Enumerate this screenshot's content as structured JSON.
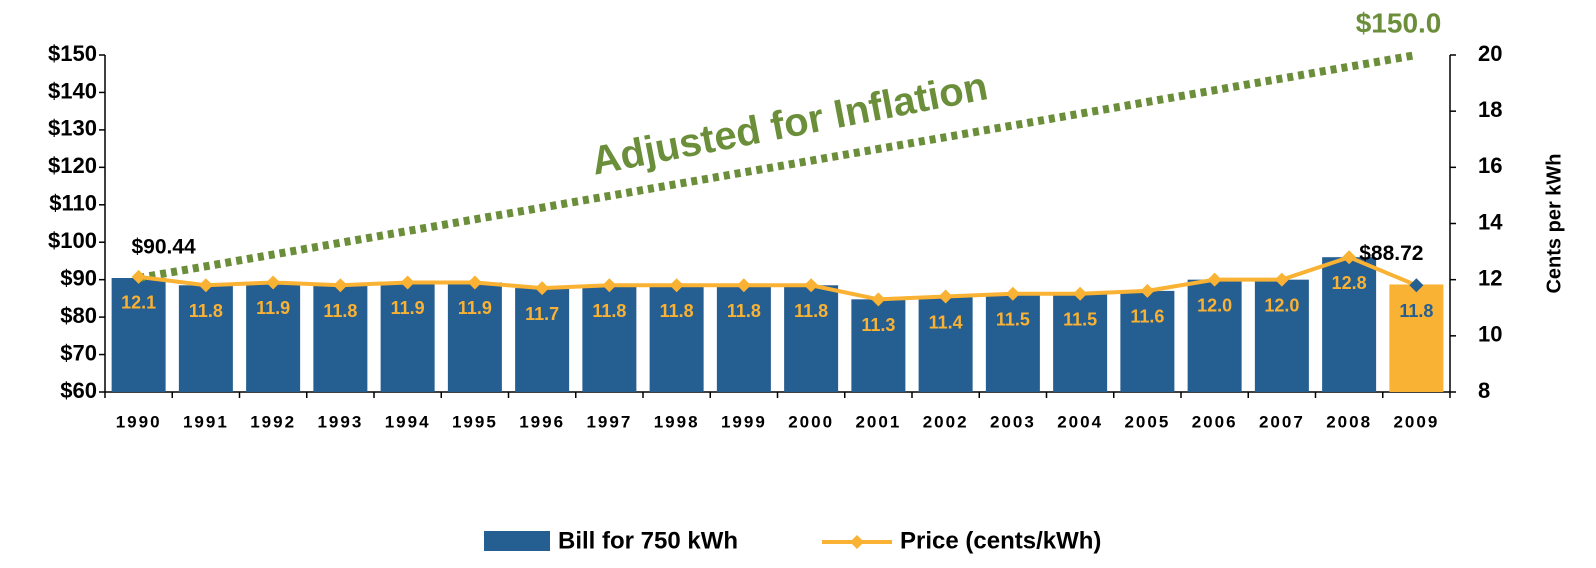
{
  "chart_data": {
    "type": "bar_line",
    "categories": [
      "1990",
      "1991",
      "1992",
      "1993",
      "1994",
      "1995",
      "1996",
      "1997",
      "1998",
      "1999",
      "2000",
      "2001",
      "2002",
      "2003",
      "2004",
      "2005",
      "2006",
      "2007",
      "2008",
      "2009"
    ],
    "series": [
      {
        "name": "Bill for 750 kWh",
        "type": "bar",
        "color": "#255e91",
        "colors": [
          "#255e91",
          "#255e91",
          "#255e91",
          "#255e91",
          "#255e91",
          "#255e91",
          "#255e91",
          "#255e91",
          "#255e91",
          "#255e91",
          "#255e91",
          "#255e91",
          "#255e91",
          "#255e91",
          "#255e91",
          "#255e91",
          "#255e91",
          "#255e91",
          "#255e91",
          "#f9b233"
        ],
        "values": [
          90.44,
          88.5,
          89.25,
          88.5,
          89.25,
          89.25,
          87.75,
          88.5,
          88.5,
          88.5,
          88.5,
          84.75,
          85.5,
          86.25,
          86.25,
          87,
          90,
          90,
          96,
          88.72
        ],
        "value_labels": [
          "$90.44",
          null,
          null,
          null,
          null,
          null,
          null,
          null,
          null,
          null,
          null,
          null,
          null,
          null,
          null,
          null,
          null,
          null,
          null,
          "$88.72"
        ]
      },
      {
        "name": "Price (cents/kWh)",
        "type": "line",
        "axis": "y2",
        "color": "#f9b233",
        "last_marker_color": "#255e91",
        "values": [
          12.1,
          11.8,
          11.9,
          11.8,
          11.9,
          11.9,
          11.7,
          11.8,
          11.8,
          11.8,
          11.8,
          11.3,
          11.4,
          11.5,
          11.5,
          11.6,
          12.0,
          12.0,
          12.8,
          11.8
        ],
        "value_labels": [
          "12.1",
          "11.8",
          "11.9",
          "11.8",
          "11.9",
          "11.9",
          "11.7",
          "11.8",
          "11.8",
          "11.8",
          "11.8",
          "11.3",
          "11.4",
          "11.5",
          "11.5",
          "11.6",
          "12.0",
          "12.0",
          "12.8",
          "11.8"
        ]
      }
    ],
    "inflation": {
      "label": "Adjusted for Inflation",
      "start": 90.44,
      "end": 150.0,
      "end_label": "$150.0",
      "color": "#6b8e3a"
    },
    "ylim": [
      60,
      150
    ],
    "yticks": [
      {
        "value": 60,
        "label": "$60"
      },
      {
        "value": 70,
        "label": "$70"
      },
      {
        "value": 80,
        "label": "$80"
      },
      {
        "value": 90,
        "label": "$90"
      },
      {
        "value": 100,
        "label": "$100"
      },
      {
        "value": 110,
        "label": "$110"
      },
      {
        "value": 120,
        "label": "$120"
      },
      {
        "value": 130,
        "label": "$130"
      },
      {
        "value": 140,
        "label": "$140"
      },
      {
        "value": 150,
        "label": "$150"
      }
    ],
    "y2lim": [
      8,
      20
    ],
    "y2ticks": [
      8,
      10,
      12,
      14,
      16,
      18,
      20
    ],
    "y2label": "Cents per kWh",
    "grid": false,
    "legend": "bottom"
  }
}
